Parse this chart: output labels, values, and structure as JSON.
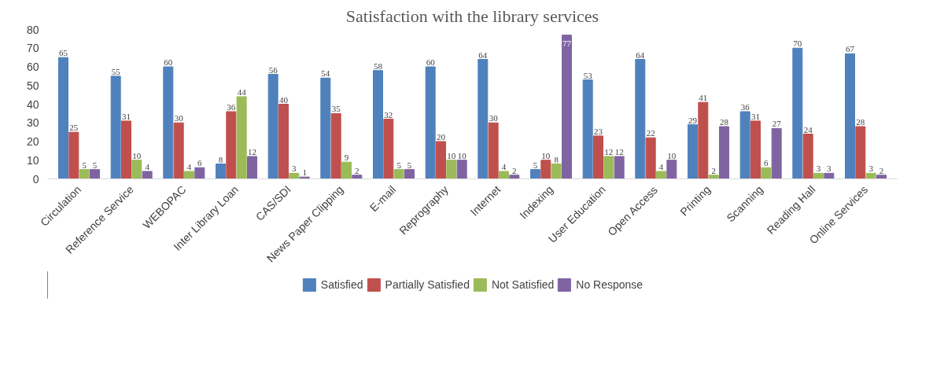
{
  "chart_data": {
    "type": "bar",
    "title": "Satisfaction with the library services",
    "categories": [
      "Circulation",
      "Reference Service",
      "WEBOPAC",
      "Inter Library Loan",
      "CAS/SDI",
      "News Paper Clipping",
      "E-mail",
      "Reprography",
      "Internet",
      "Indexing",
      "User Education",
      "Open Access",
      "Printing",
      "Scanning",
      "Reading Hall",
      "Online Services"
    ],
    "series": [
      {
        "name": "Satisfied",
        "color": "#4f81bd",
        "values": [
          65,
          55,
          60,
          8,
          56,
          54,
          58,
          60,
          64,
          5,
          53,
          64,
          29,
          36,
          70,
          67
        ]
      },
      {
        "name": "Partially Satisfied",
        "color": "#c0504d",
        "values": [
          25,
          31,
          30,
          36,
          40,
          35,
          32,
          20,
          30,
          10,
          23,
          22,
          41,
          31,
          24,
          28
        ]
      },
      {
        "name": "Not Satisfied",
        "color": "#9bbb59",
        "values": [
          5,
          10,
          4,
          44,
          3,
          9,
          5,
          10,
          4,
          8,
          12,
          4,
          2,
          6,
          3,
          3
        ]
      },
      {
        "name": "No Response",
        "color": "#8064a2",
        "values": [
          5,
          4,
          6,
          12,
          1,
          2,
          5,
          10,
          2,
          77,
          12,
          10,
          28,
          27,
          3,
          2
        ]
      }
    ],
    "ylim": [
      0,
      80
    ],
    "yticks": [
      0,
      10,
      20,
      30,
      40,
      50,
      60,
      70,
      80
    ],
    "grid": false,
    "legend": "bottom",
    "data_labels": true
  }
}
